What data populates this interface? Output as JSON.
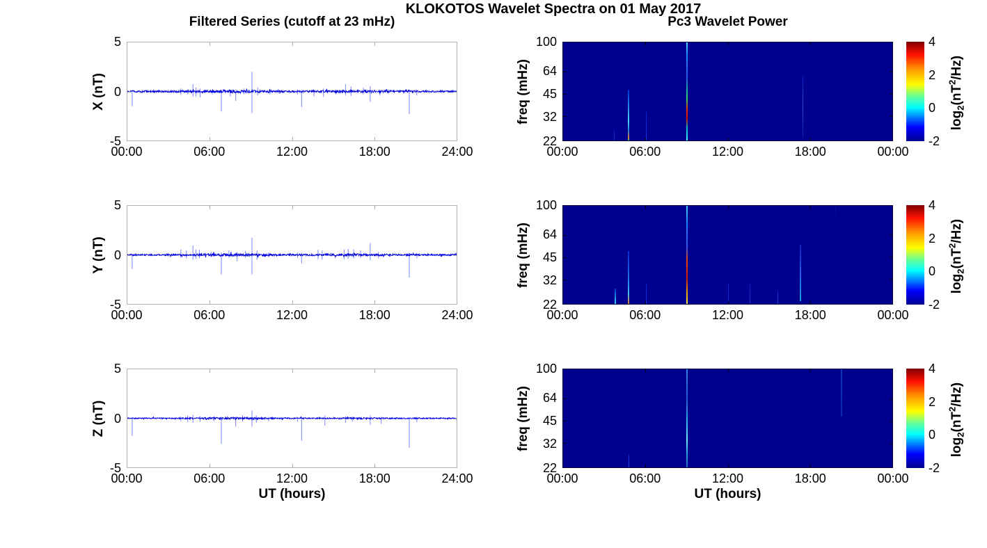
{
  "figure": {
    "suptitle": "KLOKOTOS Wavelet Spectra on 01 May 2017",
    "left_title": "Filtered Series (cutoff at 23 mHz)",
    "right_title": "Pc3 Wavelet Power",
    "xlabel": "UT (hours)",
    "colors": {
      "background": "#ffffff",
      "axes_frame": "#b2b2b2",
      "series_line": "#0000dd",
      "spike_line": "#6b78ff",
      "heat_background": "#00008f",
      "text": "#000000"
    }
  },
  "chart_data": [
    {
      "type": "line",
      "panel": "left-row-1",
      "component": "X",
      "ylabel": "X (nT)",
      "ylim": [
        -5,
        5
      ],
      "yticks": [
        "5",
        "0",
        "-5"
      ],
      "xlim_hours": [
        0,
        24
      ],
      "xticks": [
        "00:00",
        "06:00",
        "12:00",
        "18:00",
        "24:00"
      ],
      "noise_amp_nT": 0.09,
      "spikes": [
        [
          0.35,
          0.15,
          -1.5
        ],
        [
          3.9,
          0.3,
          -0.35
        ],
        [
          4.4,
          0.25,
          -0.3
        ],
        [
          4.78,
          0.75,
          -0.55
        ],
        [
          5.0,
          0.4,
          -0.5
        ],
        [
          5.3,
          0.3,
          -0.6
        ],
        [
          6.2,
          0.2,
          -0.3
        ],
        [
          6.85,
          0.2,
          -2.05
        ],
        [
          7.5,
          0.15,
          -0.5
        ],
        [
          7.9,
          0.2,
          -0.95
        ],
        [
          8.5,
          0.3,
          -0.3
        ],
        [
          9.08,
          2.0,
          -2.2
        ],
        [
          9.5,
          0.4,
          -0.4
        ],
        [
          10.4,
          0.2,
          -0.3
        ],
        [
          11.0,
          0.25,
          -0.2
        ],
        [
          12.4,
          0.2,
          -0.3
        ],
        [
          12.7,
          0.15,
          -1.6
        ],
        [
          13.6,
          0.2,
          -0.5
        ],
        [
          14.3,
          0.3,
          -0.55
        ],
        [
          15.2,
          0.2,
          -0.3
        ],
        [
          15.9,
          0.75,
          -0.4
        ],
        [
          16.3,
          0.5,
          -0.45
        ],
        [
          17.2,
          0.4,
          -0.3
        ],
        [
          17.7,
          0.55,
          -1.05
        ],
        [
          18.4,
          0.2,
          -0.4
        ],
        [
          19.0,
          0.2,
          -0.25
        ],
        [
          20.55,
          0.2,
          -2.3
        ],
        [
          21.1,
          0.2,
          -0.4
        ],
        [
          22.0,
          0.15,
          -0.2
        ]
      ]
    },
    {
      "type": "line",
      "panel": "left-row-2",
      "component": "Y",
      "ylabel": "Y (nT)",
      "ylim": [
        -5,
        5
      ],
      "yticks": [
        "5",
        "0",
        "-5"
      ],
      "xlim_hours": [
        0,
        24
      ],
      "xticks": [
        "00:00",
        "06:00",
        "12:00",
        "18:00",
        "24:00"
      ],
      "noise_amp_nT": 0.08,
      "spikes": [
        [
          0.35,
          0.12,
          -1.45
        ],
        [
          3.9,
          0.55,
          -0.3
        ],
        [
          4.3,
          0.45,
          -0.35
        ],
        [
          4.78,
          0.95,
          -0.5
        ],
        [
          5.0,
          0.55,
          -0.4
        ],
        [
          5.25,
          0.5,
          -0.35
        ],
        [
          6.1,
          0.3,
          -0.25
        ],
        [
          6.85,
          0.25,
          -2.0
        ],
        [
          7.4,
          0.45,
          -0.3
        ],
        [
          8.0,
          0.3,
          -0.65
        ],
        [
          8.6,
          0.4,
          -0.3
        ],
        [
          9.08,
          1.75,
          -2.0
        ],
        [
          9.45,
          0.45,
          -0.5
        ],
        [
          10.3,
          0.25,
          -0.25
        ],
        [
          12.4,
          0.25,
          -0.3
        ],
        [
          12.7,
          0.2,
          -0.85
        ],
        [
          13.9,
          0.5,
          -0.45
        ],
        [
          14.2,
          0.45,
          -0.5
        ],
        [
          15.8,
          0.55,
          -0.45
        ],
        [
          16.1,
          0.6,
          -0.4
        ],
        [
          16.5,
          0.55,
          -0.35
        ],
        [
          17.0,
          0.45,
          -0.3
        ],
        [
          17.7,
          1.2,
          -0.55
        ],
        [
          18.3,
          0.3,
          -0.35
        ],
        [
          20.55,
          0.2,
          -2.3
        ],
        [
          21.1,
          0.2,
          -0.35
        ]
      ]
    },
    {
      "type": "line",
      "panel": "left-row-3",
      "component": "Z",
      "ylabel": "Z (nT)",
      "ylim": [
        -5,
        5
      ],
      "yticks": [
        "5",
        "0",
        "-5"
      ],
      "xlim_hours": [
        0,
        24
      ],
      "xticks": [
        "00:00",
        "06:00",
        "12:00",
        "18:00",
        "24:00"
      ],
      "xlabel": "UT (hours)",
      "noise_amp_nT": 0.055,
      "spikes": [
        [
          0.35,
          0.1,
          -1.8
        ],
        [
          3.9,
          0.15,
          -0.3
        ],
        [
          4.4,
          0.3,
          -0.4
        ],
        [
          4.78,
          0.35,
          -0.45
        ],
        [
          5.3,
          0.2,
          -0.35
        ],
        [
          6.3,
          0.25,
          -0.3
        ],
        [
          6.85,
          0.15,
          -2.6
        ],
        [
          7.9,
          0.15,
          -0.85
        ],
        [
          8.4,
          0.3,
          -0.35
        ],
        [
          9.08,
          0.8,
          -0.85
        ],
        [
          9.4,
          0.3,
          -0.45
        ],
        [
          10.3,
          0.15,
          -0.3
        ],
        [
          12.4,
          0.15,
          -0.35
        ],
        [
          12.7,
          0.1,
          -2.3
        ],
        [
          14.4,
          0.3,
          -0.75
        ],
        [
          15.9,
          0.2,
          -0.45
        ],
        [
          16.4,
          0.15,
          -0.35
        ],
        [
          17.7,
          0.3,
          -0.65
        ],
        [
          18.5,
          0.15,
          -0.55
        ],
        [
          20.55,
          0.1,
          -3.0
        ],
        [
          21.1,
          0.15,
          -0.4
        ]
      ]
    },
    {
      "type": "heatmap",
      "panel": "right-row-1",
      "component": "X",
      "ylabel": "freq (mHz)",
      "yticks": [
        "100",
        "64",
        "45",
        "32",
        "22"
      ],
      "ytick_values_mhz": [
        100,
        64,
        45,
        32,
        22
      ],
      "freq_range_mhz": [
        22,
        100
      ],
      "log_scale": true,
      "xlim_hours": [
        0,
        24
      ],
      "xticks": [
        "00:00",
        "06:00",
        "12:00",
        "18:00",
        "00:00"
      ],
      "background_level_log2": -2,
      "events": [
        {
          "t": 3.75,
          "f": [
            26,
            22
          ],
          "w": 1,
          "stops": [
            [
              "#0018b8",
              0
            ],
            [
              "#1535d0",
              1
            ]
          ]
        },
        {
          "t": 4.78,
          "f": [
            48,
            22
          ],
          "w": 1.5,
          "stops": [
            [
              "#0030d8",
              0
            ],
            [
              "#30a8f0",
              0.45
            ],
            [
              "#40d8f8",
              0.62
            ],
            [
              "#2080e0",
              0.8
            ],
            [
              "#e08030",
              0.95
            ],
            [
              "#30c890",
              1
            ]
          ]
        },
        {
          "t": 6.05,
          "f": [
            34,
            22
          ],
          "w": 1,
          "stops": [
            [
              "#0920c8",
              0
            ],
            [
              "#1838d8",
              1
            ]
          ]
        },
        {
          "t": 9.05,
          "f": [
            100,
            22
          ],
          "w": 2,
          "stops": [
            [
              "#50d0ff",
              0
            ],
            [
              "#2090ff",
              0.12
            ],
            [
              "#2255e8",
              0.35
            ],
            [
              "#20b890",
              0.5
            ],
            [
              "#38cc60",
              0.58
            ],
            [
              "#e83300",
              0.68
            ],
            [
              "#cc1100",
              0.78
            ],
            [
              "#00c0c8",
              0.87
            ],
            [
              "#48e8ff",
              1
            ]
          ]
        },
        {
          "t": 17.5,
          "f": [
            60,
            23
          ],
          "w": 1,
          "stops": [
            [
              "#0a1cb8",
              0
            ],
            [
              "#2a50e0",
              0.5
            ],
            [
              "#0a1cb8",
              1
            ]
          ]
        }
      ],
      "colorbar": {
        "range": [
          -2,
          4
        ],
        "ticks": [
          "4",
          "2",
          "0",
          "-2"
        ],
        "label": {
          "pre": "log",
          "sub": "2",
          "mid": "(nT",
          "sup": "2",
          "post": "/Hz)"
        },
        "gradient": [
          [
            "#00008f",
            0
          ],
          [
            "#0000ff",
            0.14
          ],
          [
            "#00ffff",
            0.34
          ],
          [
            "#66ff99",
            0.45
          ],
          [
            "#ffff00",
            0.57
          ],
          [
            "#ff9900",
            0.72
          ],
          [
            "#ff1100",
            0.87
          ],
          [
            "#800000",
            1
          ]
        ]
      }
    },
    {
      "type": "heatmap",
      "panel": "right-row-2",
      "component": "Y",
      "ylabel": "freq (mHz)",
      "yticks": [
        "100",
        "64",
        "45",
        "32",
        "22"
      ],
      "ytick_values_mhz": [
        100,
        64,
        45,
        32,
        22
      ],
      "freq_range_mhz": [
        22,
        100
      ],
      "log_scale": true,
      "xlim_hours": [
        0,
        24
      ],
      "xticks": [
        "00:00",
        "06:00",
        "12:00",
        "18:00",
        "00:00"
      ],
      "background_level_log2": -2,
      "events": [
        {
          "t": 3.8,
          "f": [
            28,
            22
          ],
          "w": 1.5,
          "stops": [
            [
              "#0030d0",
              0
            ],
            [
              "#20a0e8",
              0.6
            ],
            [
              "#40d0f0",
              1
            ]
          ]
        },
        {
          "t": 4.78,
          "f": [
            50,
            22
          ],
          "w": 1.5,
          "stops": [
            [
              "#0828d0",
              0
            ],
            [
              "#2070e8",
              0.5
            ],
            [
              "#38c0f0",
              0.8
            ],
            [
              "#e07820",
              1
            ]
          ]
        },
        {
          "t": 6.05,
          "f": [
            30,
            22
          ],
          "w": 1,
          "stops": [
            [
              "#0920c8",
              0
            ],
            [
              "#1838d8",
              1
            ]
          ]
        },
        {
          "t": 9.05,
          "f": [
            100,
            22
          ],
          "w": 2,
          "stops": [
            [
              "#48c8ff",
              0
            ],
            [
              "#2080ff",
              0.18
            ],
            [
              "#3355e8",
              0.42
            ],
            [
              "#e84400",
              0.56
            ],
            [
              "#c81800",
              0.74
            ],
            [
              "#e8a000",
              0.88
            ],
            [
              "#f0e048",
              1
            ]
          ]
        },
        {
          "t": 12.05,
          "f": [
            30,
            22
          ],
          "w": 1,
          "stops": [
            [
              "#0a20c0",
              0
            ],
            [
              "#1634cc",
              1
            ]
          ]
        },
        {
          "t": 13.6,
          "f": [
            30,
            22
          ],
          "w": 1,
          "stops": [
            [
              "#0a20c0",
              0
            ],
            [
              "#1634cc",
              1
            ]
          ]
        },
        {
          "t": 15.65,
          "f": [
            27,
            22
          ],
          "w": 1,
          "stops": [
            [
              "#0a24c8",
              0
            ],
            [
              "#1c48dc",
              1
            ]
          ]
        },
        {
          "t": 17.3,
          "f": [
            55,
            23
          ],
          "w": 1.5,
          "stops": [
            [
              "#0a20c0",
              0
            ],
            [
              "#2858e8",
              0.5
            ],
            [
              "#18a0d8",
              1
            ]
          ]
        },
        {
          "t": 19.85,
          "f": [
            100,
            75
          ],
          "w": 1,
          "stops": [
            [
              "#061090",
              0
            ],
            [
              "#00008f",
              1
            ]
          ]
        }
      ],
      "colorbar": {
        "range": [
          -2,
          4
        ],
        "ticks": [
          "4",
          "2",
          "0",
          "-2"
        ],
        "label": {
          "pre": "log",
          "sub": "2",
          "mid": "(nT",
          "sup": "2",
          "post": "/Hz)"
        },
        "gradient": [
          [
            "#00008f",
            0
          ],
          [
            "#0000ff",
            0.14
          ],
          [
            "#00ffff",
            0.34
          ],
          [
            "#66ff99",
            0.45
          ],
          [
            "#ffff00",
            0.57
          ],
          [
            "#ff9900",
            0.72
          ],
          [
            "#ff1100",
            0.87
          ],
          [
            "#800000",
            1
          ]
        ]
      }
    },
    {
      "type": "heatmap",
      "panel": "right-row-3",
      "component": "Z",
      "ylabel": "freq (mHz)",
      "yticks": [
        "100",
        "64",
        "45",
        "32",
        "22"
      ],
      "ytick_values_mhz": [
        100,
        64,
        45,
        32,
        22
      ],
      "freq_range_mhz": [
        22,
        100
      ],
      "log_scale": true,
      "xlim_hours": [
        0,
        24
      ],
      "xticks": [
        "00:00",
        "06:00",
        "12:00",
        "18:00",
        "00:00"
      ],
      "xlabel": "UT (hours)",
      "background_level_log2": -2,
      "events": [
        {
          "t": 4.8,
          "f": [
            27,
            22
          ],
          "w": 1.5,
          "stops": [
            [
              "#0a28cc",
              0
            ],
            [
              "#2050e0",
              1
            ]
          ]
        },
        {
          "t": 9.05,
          "f": [
            100,
            22
          ],
          "w": 2,
          "stops": [
            [
              "#2888e0",
              0
            ],
            [
              "#2058cc",
              0.3
            ],
            [
              "#38b8f0",
              0.55
            ],
            [
              "#78e8ff",
              0.73
            ],
            [
              "#38a0e0",
              0.86
            ],
            [
              "#1868c0",
              1
            ]
          ]
        },
        {
          "t": 20.3,
          "f": [
            100,
            48
          ],
          "w": 1.5,
          "stops": [
            [
              "#1038b8",
              0
            ],
            [
              "#0c28a8",
              1
            ]
          ]
        }
      ],
      "colorbar": {
        "range": [
          -2,
          4
        ],
        "ticks": [
          "4",
          "2",
          "0",
          "-2"
        ],
        "label": {
          "pre": "log",
          "sub": "2",
          "mid": "(nT",
          "sup": "2",
          "post": "/Hz)"
        },
        "gradient": [
          [
            "#00008f",
            0
          ],
          [
            "#0000ff",
            0.14
          ],
          [
            "#00ffff",
            0.34
          ],
          [
            "#66ff99",
            0.45
          ],
          [
            "#ffff00",
            0.57
          ],
          [
            "#ff9900",
            0.72
          ],
          [
            "#ff1100",
            0.87
          ],
          [
            "#800000",
            1
          ]
        ]
      }
    }
  ]
}
